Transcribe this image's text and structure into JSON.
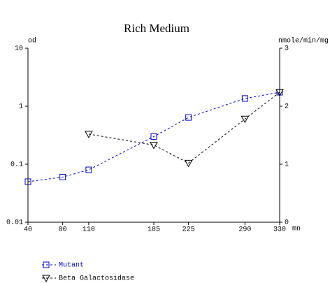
{
  "chart_data": {
    "type": "line",
    "title": "Rich Medium",
    "y_label": "od",
    "y2_label": "nmole/min/mg",
    "x_label": "mn",
    "x": [
      40,
      80,
      110,
      185,
      225,
      290,
      330
    ],
    "xlim": [
      40,
      330
    ],
    "xticks": [
      40,
      80,
      110,
      185,
      225,
      290,
      330
    ],
    "ylim": [
      0.01,
      10
    ],
    "yticks": [
      0.01,
      0.1,
      1,
      10
    ],
    "y_log": true,
    "y2lim": [
      0,
      3
    ],
    "y2ticks": [
      0,
      1,
      2,
      3
    ],
    "series": [
      {
        "name": "Mutant",
        "color": "#0000cc",
        "marker": "square",
        "axis": "y",
        "values": [
          0.05,
          0.06,
          0.08,
          0.3,
          0.64,
          1.36,
          1.74
        ]
      },
      {
        "name": "Beta Galactosidase",
        "color": "#000000",
        "marker": "triangle-down",
        "axis": "y2",
        "values": [
          null,
          null,
          1.52,
          1.33,
          1.02,
          1.78,
          2.24
        ]
      }
    ]
  }
}
